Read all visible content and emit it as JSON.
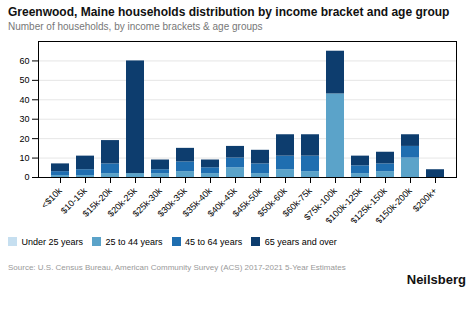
{
  "chart_data": {
    "type": "bar",
    "stacked": true,
    "title": "Greenwood, Maine households distribution by income bracket and age group",
    "subtitle": "Number of households, by income brackets & age groups",
    "annotations": [
      "Source: U.S. Census Bureau, American Community Survey (ACS) 2017-2021 5-Year Estimates",
      "Neilsberg"
    ],
    "categories": [
      "<$10k",
      "$10-15k",
      "$15k-20k",
      "$20k-25k",
      "$25k-30k",
      "$30k-35k",
      "$35k-40k",
      "$40k-45k",
      "$45k-50k",
      "$50k-60k",
      "$60k-75k",
      "$75k-100k",
      "$100k-125k",
      "$125k-150k",
      "$150k-200k",
      "$200k+"
    ],
    "series": [
      {
        "name": "Under 25 years",
        "color": "#c6dff0",
        "values": [
          0,
          0,
          0,
          0,
          0,
          0,
          0,
          0,
          0,
          0,
          0,
          0,
          0,
          0,
          0,
          0
        ]
      },
      {
        "name": "25 to 44 years",
        "color": "#5ba3c9",
        "values": [
          1,
          1,
          2,
          2,
          2,
          3,
          2,
          5,
          2,
          4,
          3,
          43,
          2,
          3,
          10,
          0
        ]
      },
      {
        "name": "45 to 64 years",
        "color": "#1f6eb0",
        "values": [
          2,
          3,
          5,
          0,
          2,
          5,
          3,
          5,
          5,
          7,
          8,
          0,
          4,
          4,
          6,
          0
        ]
      },
      {
        "name": "65 years and over",
        "color": "#0d3d6e",
        "values": [
          4,
          7,
          12,
          58,
          5,
          7,
          4,
          6,
          7,
          11,
          11,
          22,
          5,
          6,
          6,
          4
        ]
      }
    ],
    "ylim": [
      0,
      70
    ],
    "yticks": [
      0,
      10,
      20,
      30,
      40,
      50,
      60
    ],
    "grid": true,
    "legend": "bottom"
  }
}
